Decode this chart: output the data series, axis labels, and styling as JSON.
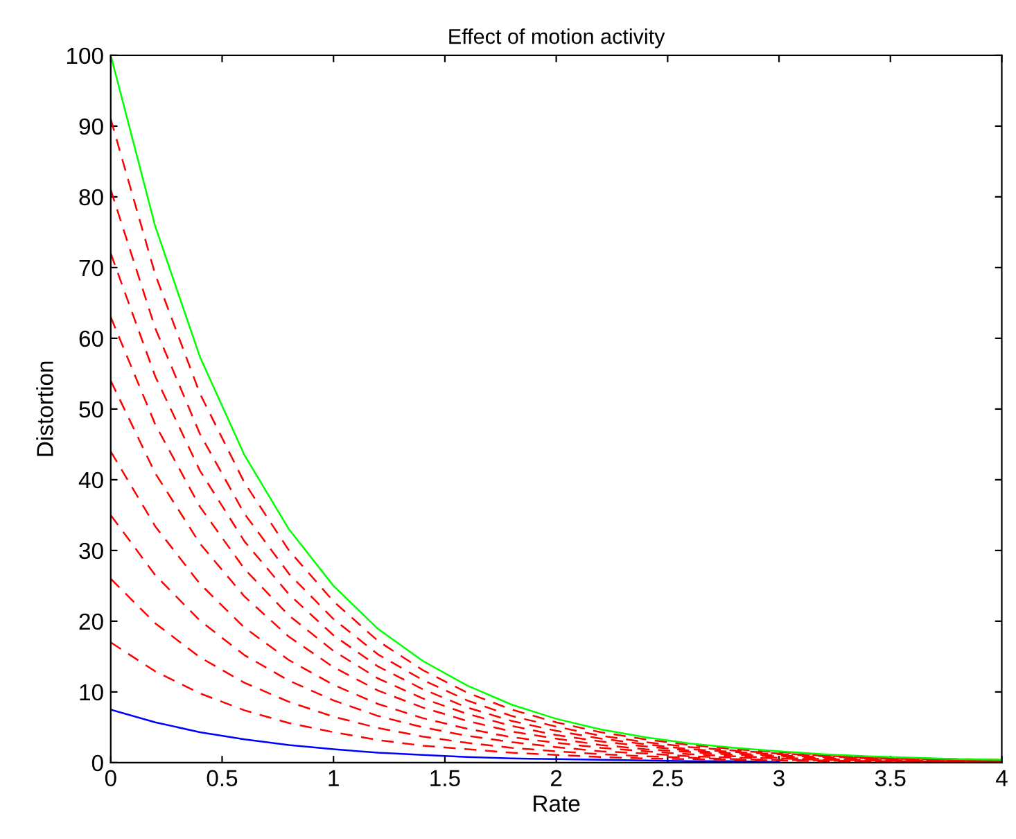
{
  "chart_data": {
    "type": "line",
    "title": "Effect of motion activity",
    "xlabel": "Rate",
    "ylabel": "Distortion",
    "x": [
      0,
      0.2,
      0.4,
      0.6,
      0.8,
      1,
      1.2,
      1.4,
      1.6,
      1.8,
      2,
      2.2,
      2.4,
      2.6,
      2.8,
      3,
      3.2,
      3.4,
      3.6,
      3.8,
      4
    ],
    "xlim": [
      0,
      4
    ],
    "xticks": [
      0,
      0.5,
      1,
      1.5,
      2,
      2.5,
      3,
      3.5,
      4
    ],
    "ylim": [
      0,
      100
    ],
    "yticks": [
      0,
      10,
      20,
      30,
      40,
      50,
      60,
      70,
      80,
      90,
      100
    ],
    "grid": false,
    "marker": "none",
    "series": [
      {
        "color": "#0000ff",
        "line_style": "solid",
        "values": [
          7.5,
          5.7,
          4.3,
          3.3,
          2.5,
          1.9,
          1.4,
          1.1,
          0.8,
          0.6,
          0.5,
          0.4,
          0.3,
          0.2,
          0.2,
          0.1,
          null,
          null,
          null,
          null,
          null
        ]
      },
      {
        "color": "#ff0000",
        "line_style": "dashed",
        "values": [
          17,
          12.9,
          9.8,
          7.4,
          5.6,
          4.3,
          3.2,
          2.4,
          1.9,
          1.4,
          1.1,
          0.8,
          0.6,
          0.5,
          0.4,
          0.3,
          0.2,
          0.2,
          0.1,
          0.1,
          0.1
        ]
      },
      {
        "color": "#ff0000",
        "line_style": "dashed",
        "values": [
          26,
          19.7,
          14.9,
          11.3,
          8.6,
          6.5,
          4.9,
          3.7,
          2.8,
          2.1,
          1.6,
          1.2,
          0.9,
          0.7,
          0.5,
          0.4,
          0.3,
          0.2,
          0.2,
          0.1,
          0.1
        ]
      },
      {
        "color": "#ff0000",
        "line_style": "dashed",
        "values": [
          35,
          26.5,
          20.1,
          15.2,
          11.6,
          8.8,
          6.6,
          5.0,
          3.8,
          2.9,
          2.2,
          1.6,
          1.3,
          0.9,
          0.7,
          0.6,
          0.4,
          0.3,
          0.2,
          0.2,
          0.1
        ]
      },
      {
        "color": "#ff0000",
        "line_style": "dashed",
        "values": [
          44,
          33.4,
          25.3,
          19.1,
          14.5,
          11,
          8.3,
          6.3,
          4.8,
          3.6,
          2.8,
          2.1,
          1.6,
          1.2,
          0.9,
          0.7,
          0.5,
          0.4,
          0.3,
          0.2,
          0.2
        ]
      },
      {
        "color": "#ff0000",
        "line_style": "dashed",
        "values": [
          54,
          40.9,
          31.0,
          23.5,
          17.8,
          13.5,
          10.2,
          7.8,
          5.9,
          4.4,
          3.4,
          2.5,
          1.9,
          1.5,
          1.1,
          0.9,
          0.6,
          0.5,
          0.4,
          0.3,
          0.2
        ]
      },
      {
        "color": "#ff0000",
        "line_style": "dashed",
        "values": [
          63,
          47.8,
          36.2,
          27.4,
          20.8,
          15.8,
          11.9,
          9.1,
          6.9,
          5.2,
          3.9,
          3.0,
          2.3,
          1.7,
          1.3,
          1.0,
          0.8,
          0.6,
          0.4,
          0.3,
          0.3
        ]
      },
      {
        "color": "#ff0000",
        "line_style": "dashed",
        "values": [
          72,
          54.6,
          41.3,
          31.3,
          23.8,
          18,
          13.6,
          10.4,
          7.8,
          5.9,
          4.5,
          3.4,
          2.6,
          1.9,
          1.5,
          1.2,
          0.9,
          0.6,
          0.5,
          0.4,
          0.3
        ]
      },
      {
        "color": "#ff0000",
        "line_style": "dashed",
        "values": [
          81,
          61.4,
          46.5,
          35.2,
          26.7,
          20.3,
          15.3,
          11.7,
          8.8,
          6.6,
          5.1,
          3.8,
          2.9,
          2.2,
          1.7,
          1.3,
          1.0,
          0.7,
          0.6,
          0.4,
          0.3
        ]
      },
      {
        "color": "#ff0000",
        "line_style": "dashed",
        "values": [
          91,
          69.0,
          52.2,
          39.6,
          30.0,
          22.8,
          17.2,
          13.1,
          9.9,
          7.5,
          5.7,
          4.3,
          3.3,
          2.5,
          1.9,
          1.5,
          1.1,
          0.8,
          0.6,
          0.5,
          0.4
        ]
      },
      {
        "color": "#00ff00",
        "line_style": "solid",
        "values": [
          100,
          75.8,
          57.4,
          43.5,
          33.0,
          25.0,
          18.9,
          14.4,
          10.9,
          8.2,
          6.2,
          4.7,
          3.6,
          2.7,
          2.1,
          1.6,
          1.2,
          0.9,
          0.7,
          0.5,
          0.4
        ]
      }
    ]
  }
}
